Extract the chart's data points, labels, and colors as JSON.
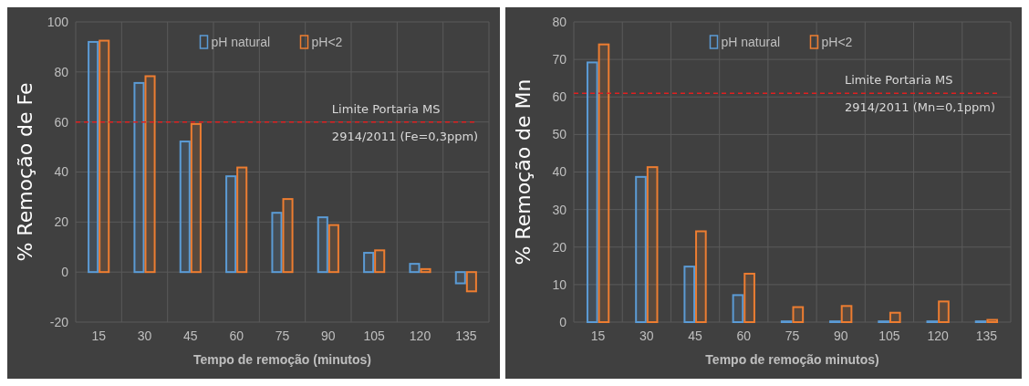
{
  "chart_data": [
    {
      "type": "bar",
      "xlabel": "Tempo de remoção (minutos)",
      "ylabel": "% Remoção de Fe",
      "categories": [
        "15",
        "30",
        "45",
        "60",
        "75",
        "90",
        "105",
        "120",
        "135"
      ],
      "series": [
        {
          "name": "pH natural",
          "color": "#5b9bd5",
          "values": [
            92,
            75.6,
            52.2,
            38.3,
            23.7,
            21.9,
            7.7,
            3.3,
            -4.5
          ]
        },
        {
          "name": "pH<2",
          "color": "#ed7d31",
          "values": [
            92.5,
            78.3,
            59.2,
            41.8,
            29.2,
            18.8,
            8.7,
            1.2,
            -7.7
          ]
        }
      ],
      "ylim": [
        -20,
        100
      ],
      "yticks": [
        -20,
        0,
        20,
        40,
        60,
        80,
        100
      ],
      "grid": true,
      "legend": "top",
      "annotations": [
        "Limite Portaria MS 2914/2011 (Fe=0,3ppm)"
      ],
      "ref_lines": [
        {
          "axis": "y",
          "value": 60,
          "color": "#e02020",
          "line_style": "dashed"
        }
      ]
    },
    {
      "type": "bar",
      "xlabel": "Tempo de remoção minutos)",
      "ylabel": "% Remoção de Mn",
      "categories": [
        "15",
        "30",
        "45",
        "60",
        "75",
        "90",
        "105",
        "120",
        "135"
      ],
      "series": [
        {
          "name": "pH natural",
          "color": "#5b9bd5",
          "values": [
            69.2,
            38.7,
            14.8,
            7.2,
            0.2,
            0.2,
            0.2,
            0.2,
            0.2
          ]
        },
        {
          "name": "pH<2",
          "color": "#ed7d31",
          "values": [
            74,
            41.3,
            24.2,
            12.9,
            4,
            4.3,
            2.5,
            5.5,
            0.6
          ]
        }
      ],
      "ylim": [
        0,
        80
      ],
      "yticks": [
        0,
        10,
        20,
        30,
        40,
        50,
        60,
        70,
        80
      ],
      "grid": true,
      "legend": "top",
      "annotations": [
        "Limite Portaria MS 2914/2011 (Mn=0,1ppm)"
      ],
      "ref_lines": [
        {
          "axis": "y",
          "value": 61,
          "color": "#e02020",
          "line_style": "dashed"
        }
      ]
    }
  ]
}
